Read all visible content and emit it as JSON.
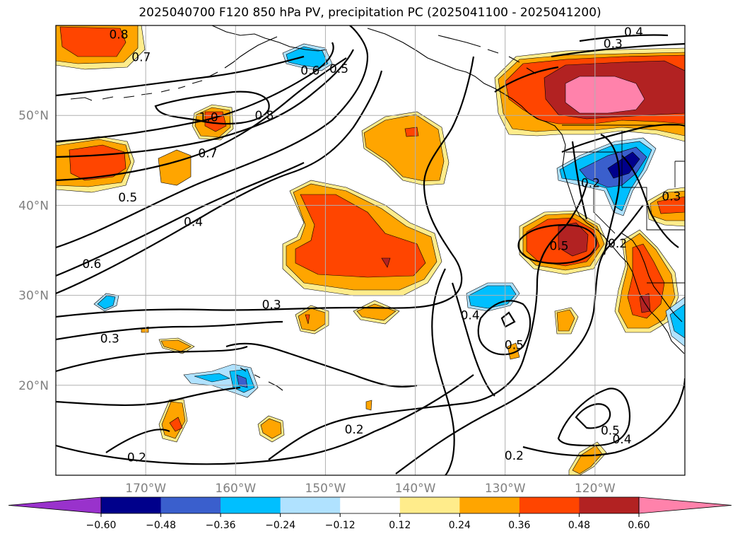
{
  "title": "2025040700 F120 850 hPa PV, precipitation PC (2025041100 - 2025041200)",
  "map": {
    "lat_labels": [
      {
        "lat": 50,
        "label": "50°N"
      },
      {
        "lat": 40,
        "label": "40°N"
      },
      {
        "lat": 30,
        "label": "30°N"
      },
      {
        "lat": 20,
        "label": "20°N"
      }
    ],
    "lon_labels": [
      {
        "lon": -170,
        "label": "170°W"
      },
      {
        "lon": -160,
        "label": "160°W"
      },
      {
        "lon": -150,
        "label": "150°W"
      },
      {
        "lon": -140,
        "label": "140°W"
      },
      {
        "lon": -130,
        "label": "130°W"
      },
      {
        "lon": -120,
        "label": "120°W"
      }
    ],
    "extent": {
      "lon_min": -180,
      "lon_max": -110,
      "lat_min": 10,
      "lat_max": 60
    },
    "gridlines": true
  },
  "colorbar": {
    "ticks": [
      "−0.60",
      "−0.48",
      "−0.36",
      "−0.24",
      "−0.12",
      "0.12",
      "0.24",
      "0.36",
      "0.48",
      "0.60"
    ],
    "colors": [
      "#9932cc",
      "#00008b",
      "#3a5fcd",
      "#00bfff",
      "#b0e2ff",
      "#ffffff",
      "#ffec8b",
      "#ffa500",
      "#ff4500",
      "#b22222",
      "#ff82ab"
    ]
  },
  "contour_labels": [
    {
      "text": "0.8",
      "lon": -173.0,
      "lat": 59.0
    },
    {
      "text": "0.7",
      "lon": -170.5,
      "lat": 56.5
    },
    {
      "text": "1.0",
      "lon": -163.0,
      "lat": 49.8
    },
    {
      "text": "0.8",
      "lon": -156.8,
      "lat": 50.0
    },
    {
      "text": "0.7",
      "lon": -163.1,
      "lat": 45.8
    },
    {
      "text": "0.6",
      "lon": -151.7,
      "lat": 55.0
    },
    {
      "text": "0.5",
      "lon": -148.5,
      "lat": 55.2
    },
    {
      "text": "0.5",
      "lon": -172.0,
      "lat": 40.9
    },
    {
      "text": "0.4",
      "lon": -164.7,
      "lat": 38.2
    },
    {
      "text": "0.6",
      "lon": -176.0,
      "lat": 33.5
    },
    {
      "text": "0.3",
      "lon": -174.0,
      "lat": 25.2
    },
    {
      "text": "0.3",
      "lon": -156.0,
      "lat": 29.0
    },
    {
      "text": "0.2",
      "lon": -171.0,
      "lat": 12.0
    },
    {
      "text": "0.2",
      "lon": -146.8,
      "lat": 15.1
    },
    {
      "text": "0.4",
      "lon": -133.9,
      "lat": 27.8
    },
    {
      "text": "0.5",
      "lon": -129.0,
      "lat": 24.5
    },
    {
      "text": "0.2",
      "lon": -129.0,
      "lat": 12.2
    },
    {
      "text": "0.5",
      "lon": -118.3,
      "lat": 15.0
    },
    {
      "text": "0.4",
      "lon": -117.0,
      "lat": 14.0
    },
    {
      "text": "0.5",
      "lon": -124.0,
      "lat": 35.5
    },
    {
      "text": "0.4",
      "lon": -115.7,
      "lat": 59.3
    },
    {
      "text": "0.3",
      "lon": -118.0,
      "lat": 58.0
    },
    {
      "text": "0.2",
      "lon": -120.5,
      "lat": 42.5
    },
    {
      "text": "0.3",
      "lon": -111.5,
      "lat": 41.0
    },
    {
      "text": "0.2",
      "lon": -117.5,
      "lat": 35.8
    }
  ]
}
